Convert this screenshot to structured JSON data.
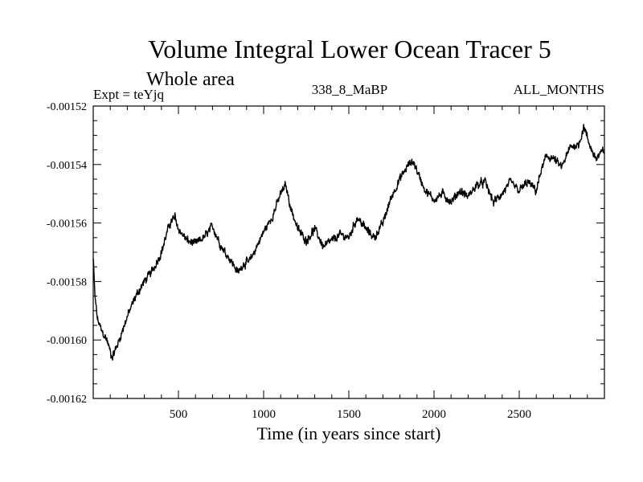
{
  "chart_data": {
    "type": "line",
    "title": "Volume Integral Lower Ocean Tracer 5",
    "subtitle": "Whole area",
    "experiment_label": "Expt = teYjq",
    "period_label": "338_8_MaBP",
    "months_label": "ALL_MONTHS",
    "xlabel": "Time (in years since start)",
    "ylabel": "",
    "xlim": [
      0,
      3000
    ],
    "ylim": [
      -0.00162,
      -0.00152
    ],
    "x_ticks": [
      500,
      1000,
      1500,
      2000,
      2500
    ],
    "x_tick_labels": [
      "500",
      "1000",
      "1500",
      "2000",
      "2500"
    ],
    "y_ticks": [
      -0.00162,
      -0.0016,
      -0.00158,
      -0.00156,
      -0.00154,
      -0.00152
    ],
    "y_tick_labels": [
      "-0.00162",
      "-0.00160",
      "-0.00158",
      "-0.00156",
      "-0.00154",
      "-0.00152"
    ],
    "grid": false,
    "series": [
      {
        "name": "Lower Ocean Tracer 5",
        "color": "#000000",
        "trend_points": {
          "x": [
            0,
            10,
            25,
            50,
            80,
            110,
            140,
            170,
            200,
            250,
            300,
            350,
            400,
            450,
            480,
            500,
            550,
            600,
            650,
            700,
            750,
            800,
            850,
            880,
            920,
            960,
            1000,
            1050,
            1100,
            1130,
            1160,
            1200,
            1250,
            1300,
            1350,
            1400,
            1450,
            1500,
            1550,
            1600,
            1650,
            1700,
            1750,
            1800,
            1850,
            1880,
            1920,
            1950,
            2000,
            2050,
            2100,
            2150,
            2200,
            2250,
            2300,
            2350,
            2400,
            2450,
            2500,
            2550,
            2600,
            2630,
            2660,
            2700,
            2750,
            2800,
            2850,
            2880,
            2910,
            2950,
            3000
          ],
          "y": [
            -0.001572,
            -0.001585,
            -0.001593,
            -0.001597,
            -0.0016,
            -0.001606,
            -0.001602,
            -0.001597,
            -0.001592,
            -0.001585,
            -0.00158,
            -0.001576,
            -0.00157,
            -0.00156,
            -0.001558,
            -0.001562,
            -0.001566,
            -0.001567,
            -0.001565,
            -0.001561,
            -0.001568,
            -0.001572,
            -0.001577,
            -0.001574,
            -0.001573,
            -0.001568,
            -0.001563,
            -0.001558,
            -0.00155,
            -0.001547,
            -0.001555,
            -0.001562,
            -0.001566,
            -0.001562,
            -0.001568,
            -0.001566,
            -0.001564,
            -0.001565,
            -0.001558,
            -0.001562,
            -0.001565,
            -0.00156,
            -0.001551,
            -0.001545,
            -0.00154,
            -0.001539,
            -0.001545,
            -0.001549,
            -0.001552,
            -0.00155,
            -0.001553,
            -0.001549,
            -0.001551,
            -0.001547,
            -0.001546,
            -0.001553,
            -0.00155,
            -0.001546,
            -0.001549,
            -0.001546,
            -0.001549,
            -0.001542,
            -0.001537,
            -0.001538,
            -0.001541,
            -0.001534,
            -0.001533,
            -0.001527,
            -0.001533,
            -0.001538,
            -0.001535
          ]
        },
        "noise_amplitude": 1.8e-06
      }
    ]
  }
}
